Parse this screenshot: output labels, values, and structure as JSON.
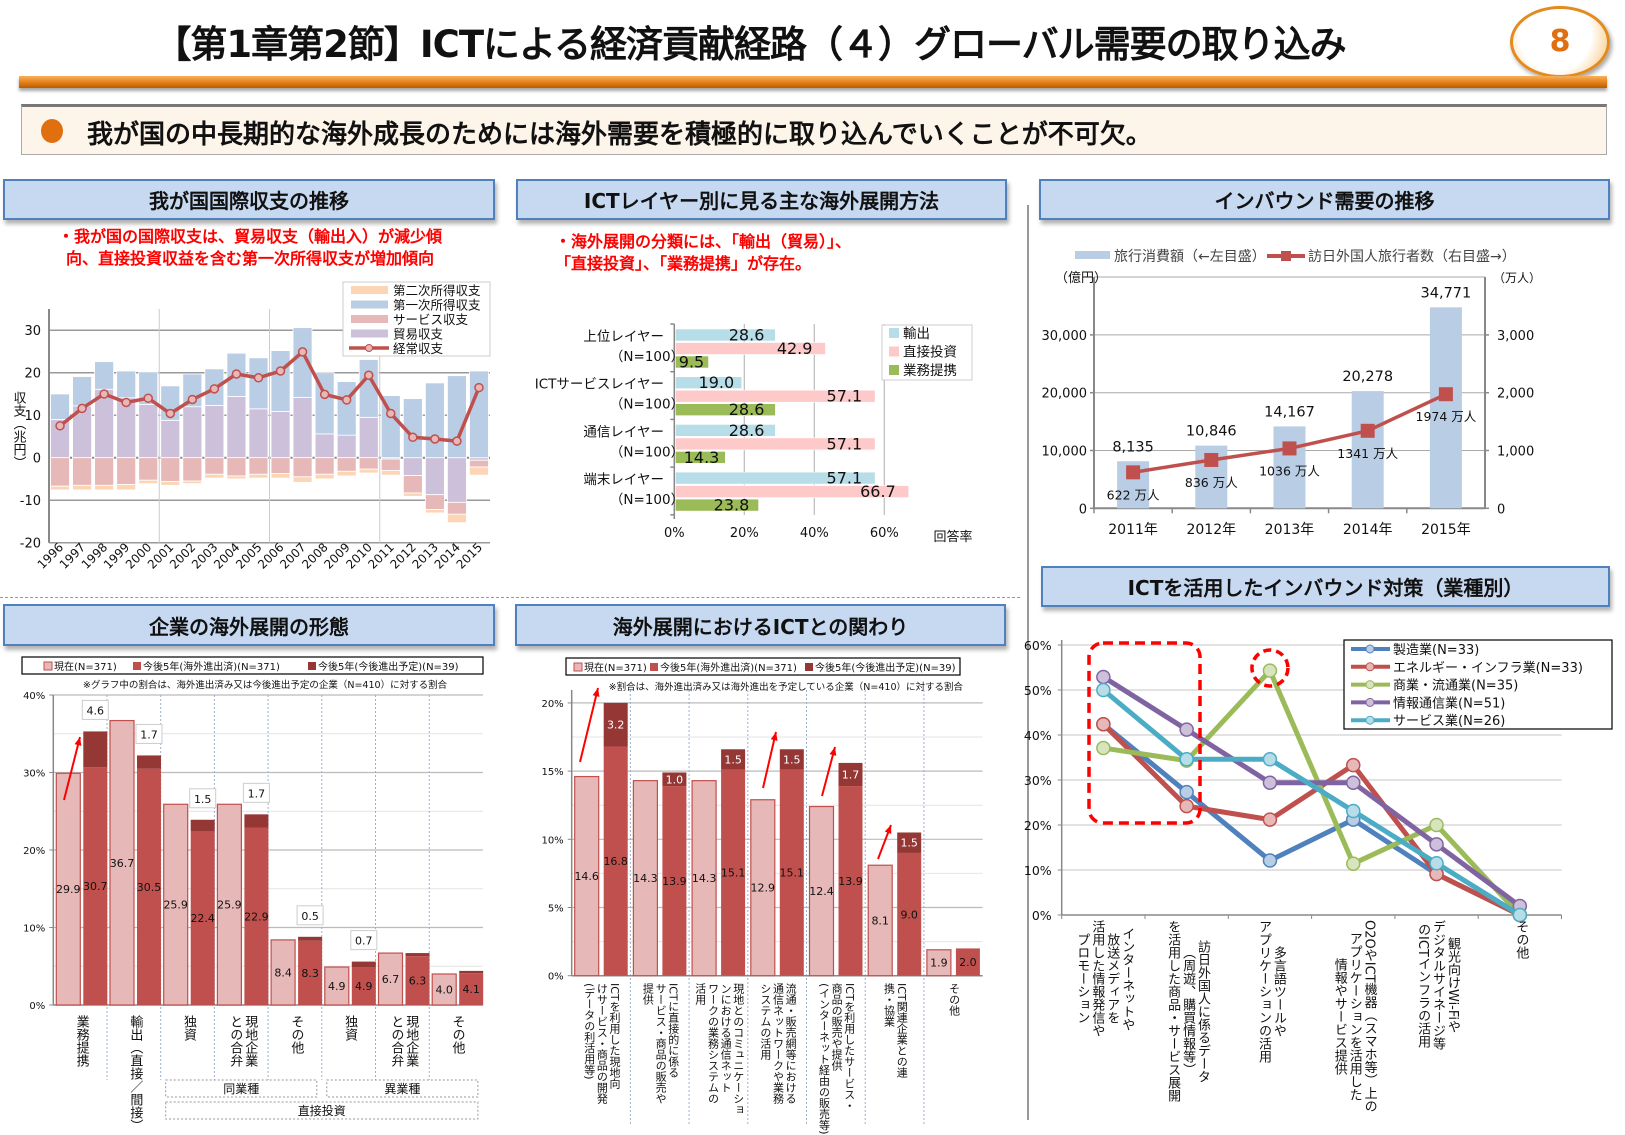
{
  "header": {
    "title": "【第1章第2節】ICTによる経済貢献経路（４）グローバル需要の取り込み",
    "page_number": "8",
    "summary": "我が国の中長期的な海外成長のためには海外需要を積極的に取り込んでいくことが不可欠。"
  },
  "sections": {
    "balance": {
      "title": "我が国国際収支の推移",
      "note": "・我が国の国際収支は、貿易収支（輸出入）が減少傾\n向、直接投資収益を含む第一次所得収支が増加傾向"
    },
    "ict_layer": {
      "title": "ICTレイヤー別に見る主な海外展開方法",
      "note": "・海外展開の分類には、「輸出（貿易）」、\n「直接投資」、「業務提携」が存在。"
    },
    "inbound": {
      "title": "インバウンド需要の推移"
    },
    "overseas_form": {
      "title": "企業の海外展開の形態"
    },
    "ict_relation": {
      "title": "海外展開におけるICTとの関わり"
    },
    "inbound_measures": {
      "title": "ICTを活用したインバウンド対策（業種別）"
    }
  },
  "chart_data": [
    {
      "id": "balance",
      "type": "bar+line",
      "ylabel": "収支（兆円）",
      "ylim": [
        -20,
        35
      ],
      "yticks": [
        -20,
        -10,
        0,
        10,
        20,
        30
      ],
      "categories": [
        "1996",
        "1997",
        "1998",
        "1999",
        "2000",
        "2001",
        "2002",
        "2003",
        "2004",
        "2005",
        "2006",
        "2007",
        "2008",
        "2009",
        "2010",
        "2011",
        "2012",
        "2013",
        "2014",
        "2015"
      ],
      "series": [
        {
          "name": "貿易収支",
          "type": "stacked-bar",
          "color": "#ccc0da",
          "values": [
            9.0,
            12.2,
            16.1,
            14.1,
            12.5,
            8.8,
            12.0,
            12.3,
            14.4,
            11.5,
            10.9,
            14.2,
            5.6,
            5.3,
            9.5,
            -0.3,
            -4.2,
            -8.7,
            -10.5,
            -0.6
          ]
        },
        {
          "name": "サービス収支",
          "type": "stacked-bar",
          "color": "#e6b9b8",
          "values": [
            -6.7,
            -6.5,
            -6.5,
            -6.3,
            -5.3,
            -5.6,
            -5.5,
            -3.9,
            -4.3,
            -3.9,
            -3.7,
            -4.5,
            -3.9,
            -3.2,
            -2.7,
            -2.7,
            -4.1,
            -3.5,
            -2.8,
            -1.6
          ]
        },
        {
          "name": "第一次所得収支",
          "type": "stacked-bar",
          "color": "#b9cde5",
          "values": [
            6.0,
            6.9,
            6.5,
            6.3,
            7.7,
            8.1,
            7.7,
            8.6,
            10.2,
            12.0,
            14.3,
            16.4,
            14.4,
            12.6,
            13.6,
            14.6,
            13.9,
            17.6,
            19.3,
            20.4
          ]
        },
        {
          "name": "第二次所得収支",
          "type": "stacked-bar",
          "color": "#fcd5b5",
          "values": [
            -0.9,
            -1.1,
            -1.1,
            -1.3,
            -0.8,
            -0.9,
            -0.6,
            -0.9,
            -0.7,
            -0.9,
            -1.1,
            -1.3,
            -1.1,
            -1.1,
            -0.9,
            -1.1,
            -0.8,
            -0.8,
            -2.0,
            -1.9
          ]
        },
        {
          "name": "経常収支",
          "type": "line",
          "color": "#c0504d",
          "values": [
            7.5,
            11.6,
            15.0,
            13.0,
            14.0,
            10.4,
            13.7,
            16.2,
            19.7,
            18.8,
            20.4,
            24.9,
            14.9,
            13.6,
            19.4,
            10.4,
            4.8,
            4.4,
            3.9,
            16.5
          ]
        }
      ],
      "legend_order": [
        "第二次所得収支",
        "第一次所得収支",
        "サービス収支",
        "貿易収支",
        "経常収支"
      ],
      "legend": "top-right",
      "grid": true
    },
    {
      "id": "ict_layer",
      "type": "hbar",
      "xlabel": "回答率",
      "xlim": [
        0,
        80
      ],
      "xticks": [
        "0%",
        "20%",
        "40%",
        "60%"
      ],
      "categories": [
        {
          "name": "上位レイヤー",
          "n": "（N=100）"
        },
        {
          "name": "ICTサービスレイヤー",
          "n": "（N=100）"
        },
        {
          "name": "通信レイヤー",
          "n": "（N=100）"
        },
        {
          "name": "端末レイヤー",
          "n": "（N=100）"
        }
      ],
      "series": [
        {
          "name": "輸出",
          "color": "#b7dde8",
          "values": [
            28.6,
            19.0,
            28.6,
            57.1
          ]
        },
        {
          "name": "直接投資",
          "color": "#fdc9c9",
          "values": [
            42.9,
            57.1,
            57.1,
            66.7
          ]
        },
        {
          "name": "業務提携",
          "color": "#9bbb59",
          "values": [
            9.5,
            28.6,
            14.3,
            23.8
          ]
        }
      ],
      "legend": "top-right"
    },
    {
      "id": "inbound",
      "type": "bar+line",
      "left_unit": "（億円）",
      "right_unit": "（万人）",
      "ylim_left": [
        0,
        40000
      ],
      "ylim_right": [
        0,
        4000
      ],
      "yticks_left": [
        "0",
        "10,000",
        "20,000",
        "30,000"
      ],
      "yticks_right": [
        "0",
        "1,000",
        "2,000",
        "3,000"
      ],
      "categories": [
        "2011年",
        "2012年",
        "2013年",
        "2014年",
        "2015年"
      ],
      "series": [
        {
          "name": "旅行消費額（←左目盛）",
          "type": "bar",
          "color": "#b9cde5",
          "values": [
            8135,
            10846,
            14167,
            20278,
            34771
          ],
          "labels": [
            "8,135",
            "10,846",
            "14,167",
            "20,278",
            "34,771"
          ]
        },
        {
          "name": "訪日外国人旅行者数（右目盛→）",
          "type": "line",
          "color": "#c0504d",
          "values": [
            622,
            836,
            1036,
            1341,
            1974
          ],
          "labels": [
            "622 万人",
            "836 万人",
            "1036 万人",
            "1341 万人",
            "1974 万人"
          ]
        }
      ],
      "legend": "top"
    },
    {
      "id": "overseas_form",
      "type": "stacked-bar",
      "ylim": [
        0,
        40
      ],
      "yticks": [
        "0%",
        "10%",
        "20%",
        "30%",
        "40%"
      ],
      "note": "※グラフ中の割合は、海外進出済み又は今後進出予定の企業（N=410）に対する割合",
      "legend_labels": [
        "現在(N=371)",
        "今後5年(海外進出済)(N=371)",
        "今後5年(今後進出予定)(N=39)"
      ],
      "colors": {
        "current": "#e6b9b8",
        "future_existing": "#c0504d",
        "future_planned": "#953735"
      },
      "categories": [
        "業務提携",
        "輸出（直接／間接）",
        "独資",
        "現地企業\nとの合弁",
        "その他",
        "独資",
        "現地企業\nとの合弁",
        "その他"
      ],
      "current": [
        29.9,
        36.7,
        25.9,
        25.9,
        8.4,
        4.9,
        6.7,
        4.0
      ],
      "future_existing": [
        30.7,
        30.5,
        22.4,
        22.9,
        8.3,
        4.9,
        6.3,
        4.1
      ],
      "future_planned": [
        4.6,
        1.7,
        1.5,
        1.7,
        0.5,
        0.7,
        0.4,
        0.3
      ],
      "future_planned_labels": [
        "4.6",
        "1.7",
        "1.5",
        "1.7",
        "0.5",
        "0.7",
        "",
        ""
      ],
      "groups": [
        {
          "label": "同業種",
          "from": 2,
          "to": 4
        },
        {
          "label": "異業種",
          "from": 5,
          "to": 7
        },
        {
          "label": "直接投資",
          "from": 2,
          "to": 7
        }
      ]
    },
    {
      "id": "ict_relation",
      "type": "stacked-bar",
      "ylim": [
        0,
        21
      ],
      "yticks": [
        "0%",
        "5%",
        "10%",
        "15%",
        "20%"
      ],
      "note": "※割合は、海外進出済み又は海外進出を予定している企業（N=410）に対する割合",
      "legend_labels": [
        "現在(N=371)",
        "今後5年(海外進出済)(N=371)",
        "今後5年(今後進出予定)(N=39)"
      ],
      "colors": {
        "current": "#e6b9b8",
        "future_existing": "#c0504d",
        "future_planned": "#953735"
      },
      "categories": [
        "ICTを利用した現地向\nけサービス・商品の開発\n(データの利活用等)",
        "ICTに直接的に係る\nサービス・商品の販売や\n提供",
        "現地とのコミュニケーショ\nンにおける通信ネット\nワークの業務システムの\n活用",
        "流通・販売網等における\n通信ネットワークや業務\nシステムの活用",
        "ICTを利用したサービス・\n商品の販売や提供\n(インターネット経由の販売等)",
        "ICT関連企業との連\n携・協業",
        "その他"
      ],
      "current": [
        14.6,
        14.3,
        14.3,
        12.9,
        12.4,
        8.1,
        1.9
      ],
      "future_existing": [
        16.8,
        13.9,
        15.1,
        15.1,
        13.9,
        9.0,
        2.0
      ],
      "future_planned": [
        3.2,
        1.0,
        1.5,
        1.5,
        1.7,
        1.5,
        0
      ],
      "future_planned_labels": [
        "3.2",
        "1.0",
        "1.5",
        "1.5",
        "1.7",
        "1.5",
        ""
      ]
    },
    {
      "id": "inbound_measures",
      "type": "line",
      "ylim": [
        0,
        60
      ],
      "yticks": [
        "0%",
        "10%",
        "20%",
        "30%",
        "40%",
        "50%",
        "60%"
      ],
      "categories": [
        "インターネットや\n放送メディアを\n活用した情報発信や\nプロモーション",
        "訪日外国人に係るデータ\n（周遊、購買情報等）\nを活用した商品・サービス展開",
        "多言語ツールや\nアプリケーションの活用",
        "O2OやICT機器（スマホ等）上の\nアプリケーションを活用した\n情報やサービス提供",
        "観光向けWi-Fiや\nデジタルサイネージ等\nのICTインフラの活用",
        "その他"
      ],
      "series": [
        {
          "name": "製造業(N=33)",
          "color": "#4f81bd",
          "marker": "#b9cde5",
          "values": [
            42.4,
            27.3,
            12.1,
            21.2,
            9.1,
            0
          ]
        },
        {
          "name": "エネルギー・インフラ業(N=33)",
          "color": "#c0504d",
          "marker": "#e6b9b8",
          "values": [
            42.4,
            24.2,
            21.2,
            33.3,
            9.1,
            0
          ]
        },
        {
          "name": "商業・流通業(N=35)",
          "color": "#9bbb59",
          "marker": "#d7e4bd",
          "values": [
            37.1,
            34.3,
            54.3,
            11.4,
            20.0,
            0
          ]
        },
        {
          "name": "情報通信業(N=51)",
          "color": "#8064a2",
          "marker": "#ccc0da",
          "values": [
            52.9,
            41.2,
            29.4,
            29.4,
            15.7,
            2.0
          ]
        },
        {
          "name": "サービス業(N=26)",
          "color": "#4bacc6",
          "marker": "#b7dde8",
          "values": [
            50.0,
            34.6,
            34.6,
            23.1,
            11.5,
            0
          ]
        }
      ],
      "highlights": [
        "dashed box around categories 1-2",
        "dashed circle around 商業・流通業 at category 3"
      ],
      "legend": "top-right",
      "grid": true
    }
  ]
}
